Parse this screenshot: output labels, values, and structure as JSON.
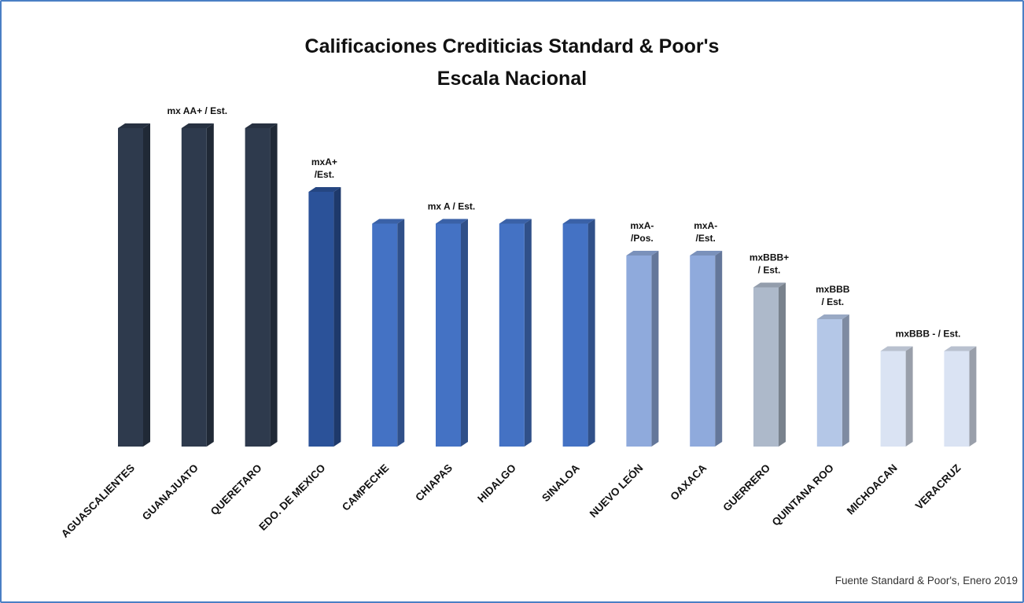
{
  "chart_data": {
    "type": "bar",
    "title": "Calificaciones Crediticias Standard & Poor's",
    "subtitle": "Escala Nacional",
    "categories": [
      "AGUASCALIENTES",
      "GUANAJUATO",
      "QUERETARO",
      "EDO. DE MEXICO",
      "CAMPECHE",
      "CHIAPAS",
      "HIDALGO",
      "SINALOA",
      "NUEVO LEÓN",
      "OAXACA",
      "GUERRERO",
      "QUINTANA ROO",
      "MICHOACAN",
      "VERACRUZ"
    ],
    "values": [
      10,
      10,
      10,
      8,
      7,
      7,
      7,
      7,
      6,
      6,
      5,
      4,
      3,
      3
    ],
    "ylim": [
      0,
      10
    ],
    "grid": false,
    "legend": "none",
    "colors": [
      "#2e3a4d",
      "#2e3a4d",
      "#2e3a4d",
      "#2b5299",
      "#4472c4",
      "#4472c4",
      "#4472c4",
      "#4472c4",
      "#8faadc",
      "#8faadc",
      "#adb9ca",
      "#b4c7e7",
      "#dae3f3",
      "#dae3f3"
    ],
    "annotations": [
      {
        "lines": [
          "mx AA+ / Est."
        ],
        "category": "GUANAJUATO"
      },
      {
        "lines": [
          "mxA+",
          "/Est."
        ],
        "category": "EDO. DE MEXICO"
      },
      {
        "lines": [
          "mx A / Est."
        ],
        "category": "CHIAPAS"
      },
      {
        "lines": [
          "mxA-",
          "/Pos."
        ],
        "category": "NUEVO LEÓN"
      },
      {
        "lines": [
          "mxA-",
          "/Est."
        ],
        "category": "OAXACA"
      },
      {
        "lines": [
          "mxBBB+",
          "/ Est."
        ],
        "category": "GUERRERO"
      },
      {
        "lines": [
          "mxBBB",
          "/ Est."
        ],
        "category": "QUINTANA ROO"
      },
      {
        "lines": [
          "mxBBB - / Est."
        ],
        "category": "MICHOACAN"
      }
    ]
  },
  "source": "Fuente Standard & Poor's, Enero 2019"
}
